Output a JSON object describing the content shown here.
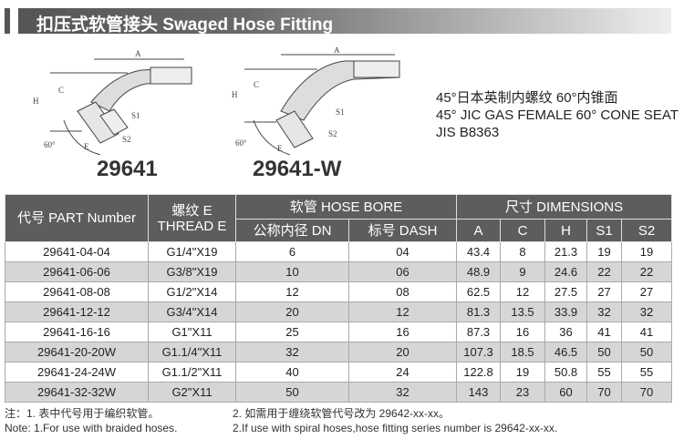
{
  "header": {
    "title": "扣压式软管接头  Swaged Hose Fitting"
  },
  "figures": [
    {
      "model": "29641",
      "dims": [
        "A",
        "H",
        "C",
        "E",
        "S1",
        "S2",
        "60°"
      ]
    },
    {
      "model": "29641-W",
      "dims": [
        "A",
        "H",
        "C",
        "E",
        "S1",
        "S2",
        "60°"
      ]
    }
  ],
  "description": [
    "45°日本英制内螺纹 60°内锥面",
    "45° JIC GAS FEMALE 60° CONE SEAT",
    "JIS B8363"
  ],
  "table": {
    "headers": {
      "part": "代号 PART Number",
      "thread": "螺纹 E THREAD E",
      "hose_bore": "软管 HOSE BORE",
      "dn": "公称内径 DN",
      "dash": "标号 DASH",
      "dimensions": "尺寸 DIMENSIONS",
      "a": "A",
      "c": "C",
      "h": "H",
      "s1": "S1",
      "s2": "S2"
    },
    "rows": [
      [
        "29641-04-04",
        "G1/4\"X19",
        "6",
        "04",
        "43.4",
        "8",
        "21.3",
        "19",
        "19"
      ],
      [
        "29641-06-06",
        "G3/8\"X19",
        "10",
        "06",
        "48.9",
        "9",
        "24.6",
        "22",
        "22"
      ],
      [
        "29641-08-08",
        "G1/2\"X14",
        "12",
        "08",
        "62.5",
        "12",
        "27.5",
        "27",
        "27"
      ],
      [
        "29641-12-12",
        "G3/4\"X14",
        "20",
        "12",
        "81.3",
        "13.5",
        "33.9",
        "32",
        "32"
      ],
      [
        "29641-16-16",
        "G1\"X11",
        "25",
        "16",
        "87.3",
        "16",
        "36",
        "41",
        "41"
      ],
      [
        "29641-20-20W",
        "G1.1/4\"X11",
        "32",
        "20",
        "107.3",
        "18.5",
        "46.5",
        "50",
        "50"
      ],
      [
        "29641-24-24W",
        "G1.1/2\"X11",
        "40",
        "24",
        "122.8",
        "19",
        "50.8",
        "55",
        "55"
      ],
      [
        "29641-32-32W",
        "G2\"X11",
        "50",
        "32",
        "143",
        "23",
        "60",
        "70",
        "70"
      ]
    ]
  },
  "notes": {
    "cn1": "注：1. 表中代号用于编织软管。",
    "cn2": "2. 如需用于缠绕软管代号改为 29642-xx-xx。",
    "en1": "Note: 1.For use with braided hoses.",
    "en2": "2.If use with spiral hoses,hose fitting series number is 29642-xx-xx."
  }
}
